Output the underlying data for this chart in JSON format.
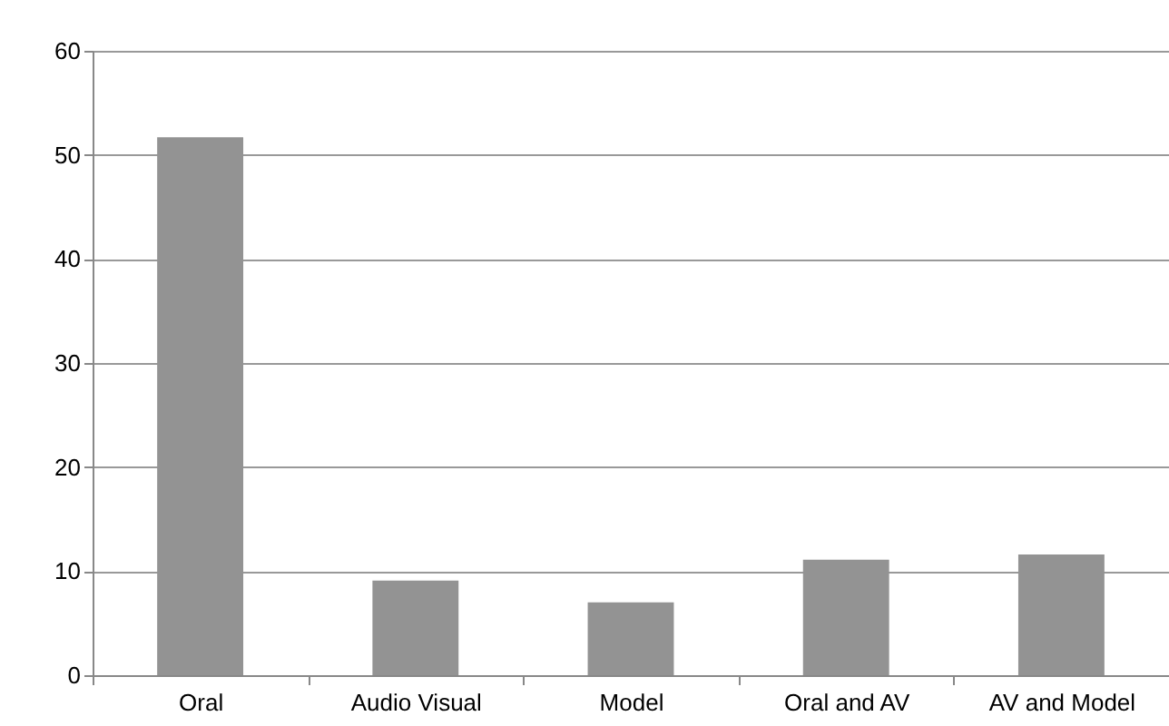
{
  "chart_data": {
    "type": "bar",
    "categories": [
      "Oral",
      "Audio Visual",
      "Model",
      "Oral and AV",
      "AV and Model"
    ],
    "values": [
      51.7,
      9.1,
      7.0,
      11.1,
      11.6
    ],
    "color": "#939393",
    "ylim": [
      0,
      60
    ],
    "yticks": [
      0,
      10,
      20,
      30,
      40,
      50,
      60
    ],
    "grid": "y"
  }
}
